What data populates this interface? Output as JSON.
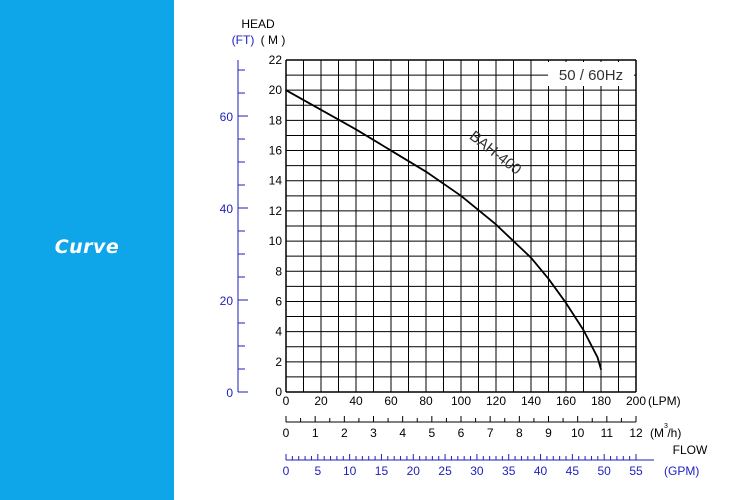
{
  "sidebar": {
    "title": "Curve",
    "color": "#0ea5e9"
  },
  "chart_data": {
    "type": "line",
    "freq_label": "50 / 60Hz",
    "head_label": "HEAD",
    "head_ft_unit": "(FT)",
    "head_m_unit": "( M )",
    "flow_label": "FLOW",
    "lpm_unit": "(LPM)",
    "m3h_unit": "(M /h)",
    "m3h_sup": "3",
    "gpm_unit": "(GPM)",
    "series": [
      {
        "name": "BAH-400",
        "x": [
          0,
          20,
          40,
          60,
          80,
          100,
          120,
          130,
          140,
          150,
          160,
          170,
          178,
          180
        ],
        "y": [
          20,
          18.7,
          17.4,
          16.0,
          14.6,
          13.0,
          11.1,
          10.0,
          8.9,
          7.5,
          5.9,
          4.1,
          2.3,
          1.5
        ]
      }
    ],
    "xlim_lpm": [
      0,
      200
    ],
    "ylim_m": [
      0,
      22
    ],
    "x_ticks_lpm": [
      "0",
      "20",
      "40",
      "60",
      "80",
      "100",
      "120",
      "140",
      "160",
      "180",
      "200"
    ],
    "y_ticks_m": [
      "0",
      "2",
      "4",
      "6",
      "8",
      "10",
      "12",
      "14",
      "16",
      "18",
      "20",
      "22"
    ],
    "m3h_ticks": [
      "0",
      "1",
      "2",
      "3",
      "4",
      "5",
      "6",
      "7",
      "8",
      "9",
      "10",
      "11",
      "12"
    ],
    "gpm_ticks": [
      "0",
      "5",
      "10",
      "15",
      "20",
      "25",
      "30",
      "35",
      "40",
      "45",
      "50",
      "55"
    ],
    "ft_ticks": [
      "0",
      "20",
      "40",
      "60"
    ],
    "grid": true,
    "colors": {
      "curve": "#000000",
      "grid": "#000000",
      "gpm": "#1e1ebe",
      "ft": "#1e1ebe"
    }
  }
}
